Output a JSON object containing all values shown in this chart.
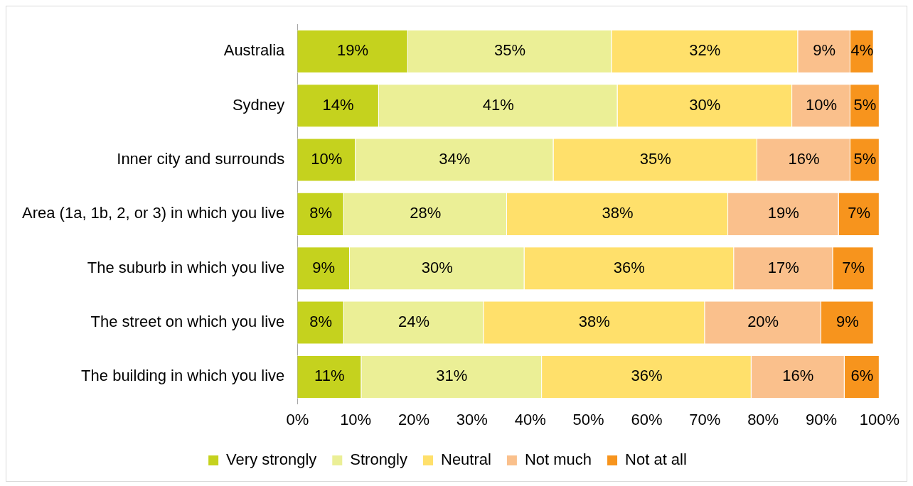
{
  "chart_data": {
    "type": "bar",
    "orientation": "horizontal",
    "stacked": true,
    "legend": "bottom",
    "grid": false,
    "categories": [
      "Australia",
      "Sydney",
      "Inner city and surrounds",
      "Area (1a, 1b, 2, or 3) in which you live",
      "The suburb in which you live",
      "The street on which you live",
      "The building in which you live"
    ],
    "xlim": [
      0,
      100
    ],
    "xticks": [
      {
        "value": 0,
        "label": "0%"
      },
      {
        "value": 10,
        "label": "10%"
      },
      {
        "value": 20,
        "label": "20%"
      },
      {
        "value": 30,
        "label": "30%"
      },
      {
        "value": 40,
        "label": "40%"
      },
      {
        "value": 50,
        "label": "50%"
      },
      {
        "value": 60,
        "label": "60%"
      },
      {
        "value": 70,
        "label": "70%"
      },
      {
        "value": 80,
        "label": "80%"
      },
      {
        "value": 90,
        "label": "90%"
      },
      {
        "value": 100,
        "label": "100%"
      }
    ],
    "series": [
      {
        "name": "Very strongly",
        "color": "#c5d21e",
        "values": [
          19,
          14,
          10,
          8,
          9,
          8,
          11
        ],
        "value_labels": [
          "19%",
          "14%",
          "10%",
          "8%",
          "9%",
          "8%",
          "11%"
        ]
      },
      {
        "name": "Strongly",
        "color": "#ebef96",
        "values": [
          35,
          41,
          34,
          28,
          30,
          24,
          31
        ],
        "value_labels": [
          "35%",
          "41%",
          "34%",
          "28%",
          "30%",
          "24%",
          "31%"
        ]
      },
      {
        "name": "Neutral",
        "color": "#ffe06b",
        "values": [
          32,
          30,
          35,
          38,
          36,
          38,
          36
        ],
        "value_labels": [
          "32%",
          "30%",
          "35%",
          "38%",
          "36%",
          "38%",
          "36%"
        ]
      },
      {
        "name": "Not much",
        "color": "#fac08c",
        "values": [
          9,
          10,
          16,
          19,
          17,
          20,
          16
        ],
        "value_labels": [
          "9%",
          "10%",
          "16%",
          "19%",
          "17%",
          "20%",
          "16%"
        ]
      },
      {
        "name": "Not at all",
        "color": "#f7941d",
        "values": [
          4,
          5,
          5,
          7,
          7,
          9,
          6
        ],
        "value_labels": [
          "4%",
          "5%",
          "5%",
          "7%",
          "7%",
          "9%",
          "6%"
        ]
      }
    ]
  }
}
